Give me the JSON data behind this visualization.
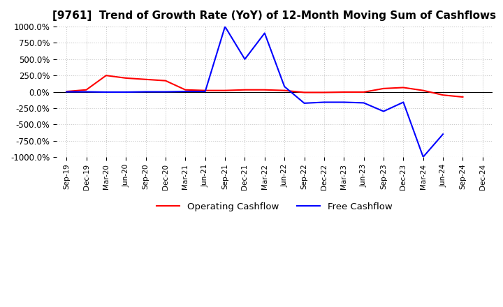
{
  "title": "[9761]  Trend of Growth Rate (YoY) of 12-Month Moving Sum of Cashflows",
  "ylim": [
    -1000,
    1000
  ],
  "yticks": [
    1000,
    750,
    500,
    250,
    0,
    -250,
    -500,
    -750,
    -1000
  ],
  "ytick_labels": [
    "1000.0%",
    "750.0%",
    "500.0%",
    "250.0%",
    "0.0%",
    "-250.0%",
    "-500.0%",
    "-750.0%",
    "-1000.0%"
  ],
  "xtick_labels": [
    "Sep-19",
    "Dec-19",
    "Mar-20",
    "Jun-20",
    "Sep-20",
    "Dec-20",
    "Mar-21",
    "Jun-21",
    "Sep-21",
    "Dec-21",
    "Mar-22",
    "Jun-22",
    "Sep-22",
    "Dec-22",
    "Mar-23",
    "Jun-23",
    "Sep-23",
    "Dec-23",
    "Mar-24",
    "Jun-24",
    "Sep-24",
    "Dec-24"
  ],
  "op_color": "#ff0000",
  "free_color": "#0000ff",
  "bg_color": "#ffffff",
  "grid_color": "#c8c8c8",
  "title_fontsize": 11,
  "legend_labels": [
    "Operating Cashflow",
    "Free Cashflow"
  ],
  "op_data": [
    5,
    30,
    250,
    210,
    190,
    170,
    30,
    20,
    20,
    30,
    30,
    20,
    -10,
    -10,
    -5,
    -5,
    50,
    65,
    20,
    -50,
    -80,
    null
  ],
  "free_data": [
    0,
    0,
    -5,
    -5,
    0,
    0,
    5,
    5,
    1000,
    500,
    900,
    80,
    -175,
    -160,
    -160,
    -170,
    -300,
    -160,
    -1000,
    -650,
    null,
    null
  ]
}
